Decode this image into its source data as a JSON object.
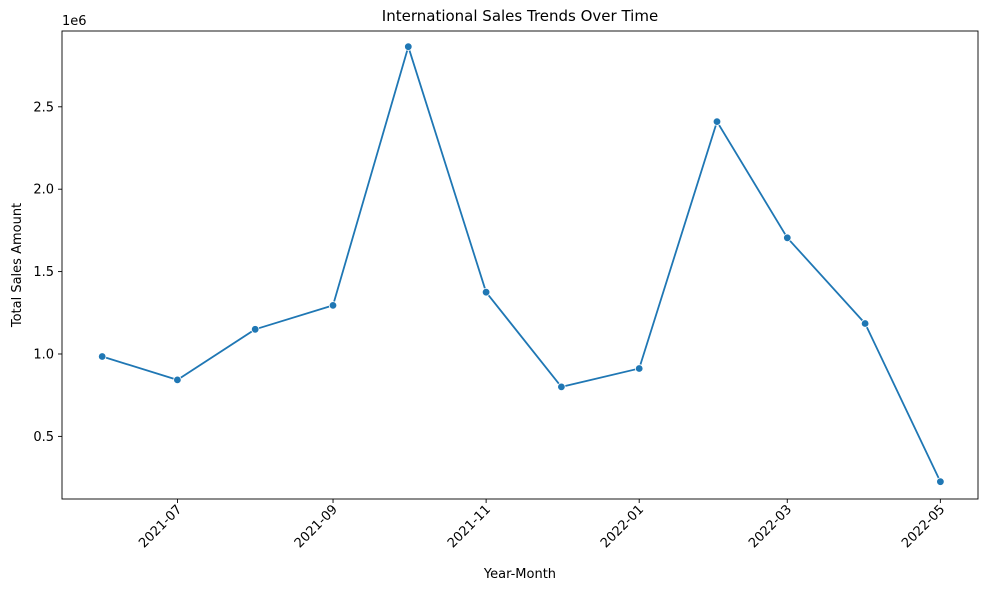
{
  "chart_data": {
    "type": "line",
    "title": "International Sales Trends Over Time",
    "xlabel": "Year-Month",
    "ylabel": "Total Sales Amount",
    "y_offset_label": "1e6",
    "y_scale_factor": 1000000,
    "x_type": "date",
    "xlim": [
      "2021-05-16",
      "2022-05-16"
    ],
    "ylim": [
      120000,
      2960000
    ],
    "x_ticks": [
      "2021-07",
      "2021-09",
      "2021-11",
      "2022-01",
      "2022-03",
      "2022-05"
    ],
    "y_ticks": [
      "0.5",
      "1.0",
      "1.5",
      "2.0",
      "2.5"
    ],
    "x_tick_rotation_deg": 45,
    "grid": false,
    "line_color": "#1f77b4",
    "marker": "circle",
    "series": [
      {
        "x": [
          "2021-06-01",
          "2021-07-01",
          "2021-08-01",
          "2021-09-01",
          "2021-10-01",
          "2021-11-01",
          "2021-12-01",
          "2022-01-01",
          "2022-02-01",
          "2022-03-01",
          "2022-04-01",
          "2022-05-01"
        ],
        "values": [
          985000,
          843000,
          1150000,
          1295000,
          2865000,
          1375000,
          800000,
          912000,
          2410000,
          1705000,
          1185000,
          225000
        ]
      }
    ]
  }
}
